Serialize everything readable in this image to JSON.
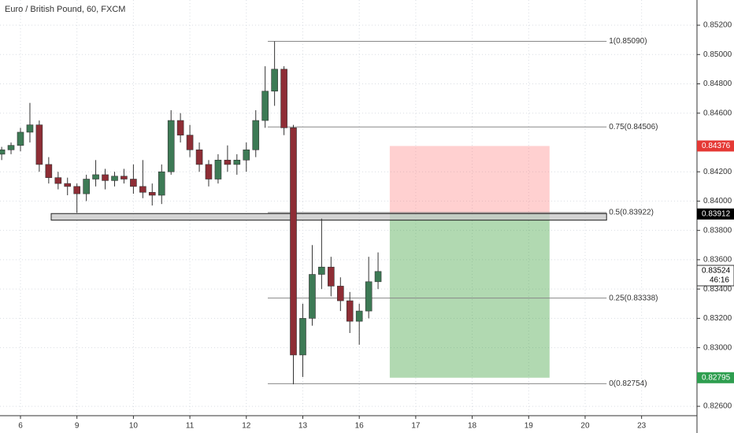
{
  "chart_data": {
    "type": "candlestick",
    "title": "Euro / British Pound, 60, FXCM",
    "xlim": [
      -0.3626,
      11.981
    ],
    "ylim": [
      0.82536,
      0.85372
    ],
    "xticks": [
      {
        "value": 0,
        "label": "6"
      },
      {
        "value": 1,
        "label": "9"
      },
      {
        "value": 2,
        "label": "10"
      },
      {
        "value": 3,
        "label": "11"
      },
      {
        "value": 4,
        "label": "12"
      },
      {
        "value": 5,
        "label": "13"
      },
      {
        "value": 6,
        "label": "16"
      },
      {
        "value": 7,
        "label": "17"
      },
      {
        "value": 8,
        "label": "18"
      },
      {
        "value": 9,
        "label": "19"
      },
      {
        "value": 10,
        "label": "20"
      },
      {
        "value": 11,
        "label": "23"
      }
    ],
    "yticks": [
      {
        "value": 0.852,
        "label": "0.85200"
      },
      {
        "value": 0.85,
        "label": "0.85000"
      },
      {
        "value": 0.848,
        "label": "0.84800"
      },
      {
        "value": 0.846,
        "label": "0.84600"
      },
      {
        "value": 0.842,
        "label": "0.84200"
      },
      {
        "value": 0.84,
        "label": "0.84000"
      },
      {
        "value": 0.838,
        "label": "0.83800"
      },
      {
        "value": 0.836,
        "label": "0.83600"
      },
      {
        "value": 0.834,
        "label": "0.83400"
      },
      {
        "value": 0.832,
        "label": "0.83200"
      },
      {
        "value": 0.83,
        "label": "0.83000"
      },
      {
        "value": 0.826,
        "label": "0.82600"
      }
    ],
    "grid": true,
    "up_color": "#3d7a55",
    "down_color": "#8e2d35",
    "x": [
      -0.333,
      -0.167,
      0,
      0.167,
      0.333,
      0.5,
      0.667,
      0.833,
      1,
      1.167,
      1.333,
      1.5,
      1.667,
      1.833,
      2,
      2.167,
      2.333,
      2.5,
      2.667,
      2.833,
      3,
      3.167,
      3.333,
      3.5,
      3.667,
      3.833,
      4,
      4.167,
      4.333,
      4.5,
      4.667,
      4.833,
      5,
      5.167,
      5.333,
      5.5,
      5.667,
      5.833,
      6,
      6.167,
      6.333
    ],
    "open": [
      0.8432,
      0.8435,
      0.8438,
      0.8447,
      0.8452,
      0.8425,
      0.8416,
      0.8412,
      0.841,
      0.8405,
      0.8415,
      0.8418,
      0.8414,
      0.8417,
      0.8415,
      0.841,
      0.8406,
      0.8404,
      0.842,
      0.8455,
      0.8445,
      0.8435,
      0.8425,
      0.8415,
      0.8428,
      0.8425,
      0.8428,
      0.8435,
      0.8455,
      0.8475,
      0.849,
      0.845,
      0.8295,
      0.832,
      0.835,
      0.8355,
      0.8342,
      0.8332,
      0.8318,
      0.8325,
      0.8345
    ],
    "high": [
      0.8437,
      0.844,
      0.845,
      0.8467,
      0.8455,
      0.843,
      0.842,
      0.8416,
      0.8412,
      0.8418,
      0.8428,
      0.8422,
      0.842,
      0.8422,
      0.8425,
      0.8428,
      0.8412,
      0.8425,
      0.8462,
      0.846,
      0.8452,
      0.844,
      0.8428,
      0.8432,
      0.8438,
      0.8432,
      0.844,
      0.8462,
      0.8492,
      0.8509,
      0.8492,
      0.8452,
      0.833,
      0.837,
      0.8388,
      0.8362,
      0.8348,
      0.8338,
      0.833,
      0.8362,
      0.8365
    ],
    "low": [
      0.8428,
      0.8432,
      0.8434,
      0.844,
      0.842,
      0.8412,
      0.8408,
      0.8404,
      0.8392,
      0.84,
      0.841,
      0.8408,
      0.841,
      0.8412,
      0.8405,
      0.8402,
      0.8397,
      0.8398,
      0.8418,
      0.844,
      0.843,
      0.842,
      0.841,
      0.8412,
      0.842,
      0.8418,
      0.842,
      0.843,
      0.845,
      0.8465,
      0.8445,
      0.8275,
      0.828,
      0.8315,
      0.834,
      0.8335,
      0.8325,
      0.831,
      0.8302,
      0.832,
      0.834
    ],
    "close": [
      0.8435,
      0.8438,
      0.8447,
      0.8452,
      0.8425,
      0.8416,
      0.8412,
      0.841,
      0.8405,
      0.8415,
      0.8418,
      0.8414,
      0.8417,
      0.8415,
      0.841,
      0.8406,
      0.8404,
      0.842,
      0.8455,
      0.8445,
      0.8435,
      0.8425,
      0.8415,
      0.8428,
      0.8425,
      0.8428,
      0.8435,
      0.8455,
      0.8475,
      0.849,
      0.845,
      0.8295,
      0.832,
      0.835,
      0.8355,
      0.8342,
      0.8332,
      0.8318,
      0.8325,
      0.8345,
      0.8352
    ],
    "fib": {
      "x_range": [
        4.38,
        10.38
      ],
      "levels": [
        {
          "label": "1(0.85090)",
          "price": 0.8509
        },
        {
          "label": "0.75(0.84506)",
          "price": 0.84506
        },
        {
          "label": "0.5(0.83922)",
          "price": 0.83922
        },
        {
          "label": "0.25(0.83338)",
          "price": 0.83338
        },
        {
          "label": "0(0.82754)",
          "price": 0.82754
        }
      ]
    },
    "zone": {
      "x_range": [
        0.544,
        10.38
      ],
      "price_range": [
        0.8387,
        0.83915
      ]
    },
    "position": {
      "x_range": [
        6.54,
        9.37
      ],
      "stop": 0.84376,
      "entry": 0.83912,
      "target": 0.82795
    },
    "badges": [
      {
        "value": 0.84376,
        "label": "0.84376",
        "color": "#e53935"
      },
      {
        "value": 0.83912,
        "label": "0.83912",
        "color": "#000000"
      },
      {
        "value": 0.83524,
        "label": "0.83524",
        "color": "#ffffff"
      },
      {
        "value": 0.82795,
        "label": "0.82795",
        "color": "#2e9e4f"
      }
    ],
    "countdown": "46:16"
  }
}
